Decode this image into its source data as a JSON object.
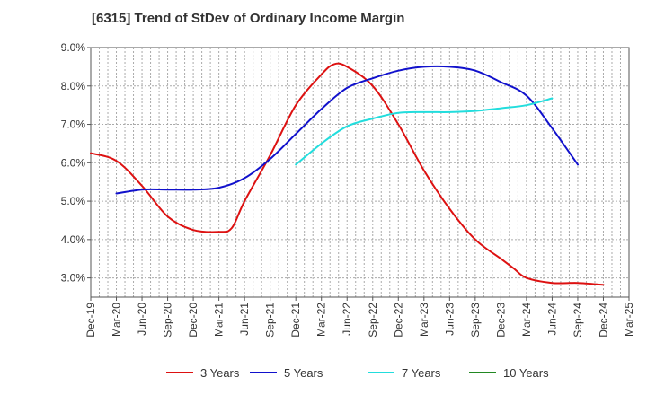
{
  "title": "[6315]  Trend of StDev of Ordinary Income Margin",
  "chart_data": {
    "type": "line",
    "title": "[6315]  Trend of StDev of Ordinary Income Margin",
    "xlabel": "",
    "ylabel": "",
    "x_ticks": [
      "Dec-19",
      "Mar-20",
      "Jun-20",
      "Sep-20",
      "Dec-20",
      "Mar-21",
      "Jun-21",
      "Sep-21",
      "Dec-21",
      "Mar-22",
      "Jun-22",
      "Sep-22",
      "Dec-22",
      "Mar-23",
      "Jun-23",
      "Sep-23",
      "Dec-23",
      "Mar-24",
      "Jun-24",
      "Sep-24",
      "Dec-24",
      "Mar-25"
    ],
    "y_ticks": [
      "3.0%",
      "4.0%",
      "5.0%",
      "6.0%",
      "7.0%",
      "8.0%",
      "9.0%"
    ],
    "ylim": [
      2.5,
      9.0
    ],
    "grid": true,
    "legend_position": "bottom",
    "series": [
      {
        "name": "3 Years",
        "color": "#dd1111",
        "points": [
          [
            0,
            6.25
          ],
          [
            1,
            6.05
          ],
          [
            2,
            5.4
          ],
          [
            3,
            4.6
          ],
          [
            4,
            4.25
          ],
          [
            5,
            4.2
          ],
          [
            5.5,
            4.3
          ],
          [
            6,
            5.0
          ],
          [
            7,
            6.2
          ],
          [
            8,
            7.5
          ],
          [
            9,
            8.3
          ],
          [
            9.5,
            8.57
          ],
          [
            10,
            8.5
          ],
          [
            11,
            8.0
          ],
          [
            12,
            7.0
          ],
          [
            13,
            5.8
          ],
          [
            14,
            4.8
          ],
          [
            15,
            4.0
          ],
          [
            16,
            3.5
          ],
          [
            16.5,
            3.25
          ],
          [
            17,
            3.0
          ],
          [
            18,
            2.87
          ],
          [
            19,
            2.87
          ],
          [
            20,
            2.82
          ]
        ]
      },
      {
        "name": "5 Years",
        "color": "#1111cc",
        "points": [
          [
            1,
            5.2
          ],
          [
            2,
            5.3
          ],
          [
            3,
            5.3
          ],
          [
            4,
            5.3
          ],
          [
            5,
            5.35
          ],
          [
            6,
            5.6
          ],
          [
            7,
            6.1
          ],
          [
            8,
            6.75
          ],
          [
            9,
            7.4
          ],
          [
            10,
            7.95
          ],
          [
            11,
            8.2
          ],
          [
            12,
            8.4
          ],
          [
            13,
            8.5
          ],
          [
            14,
            8.5
          ],
          [
            15,
            8.4
          ],
          [
            16,
            8.1
          ],
          [
            17,
            7.75
          ],
          [
            18,
            6.9
          ],
          [
            19,
            5.95
          ]
        ]
      },
      {
        "name": "7 Years",
        "color": "#22dddd",
        "points": [
          [
            8,
            5.95
          ],
          [
            9,
            6.5
          ],
          [
            10,
            6.95
          ],
          [
            11,
            7.15
          ],
          [
            12,
            7.3
          ],
          [
            13,
            7.32
          ],
          [
            14,
            7.32
          ],
          [
            15,
            7.35
          ],
          [
            16,
            7.42
          ],
          [
            17,
            7.5
          ],
          [
            18,
            7.68
          ]
        ]
      },
      {
        "name": "10 Years",
        "color": "#228822",
        "points": []
      }
    ]
  }
}
